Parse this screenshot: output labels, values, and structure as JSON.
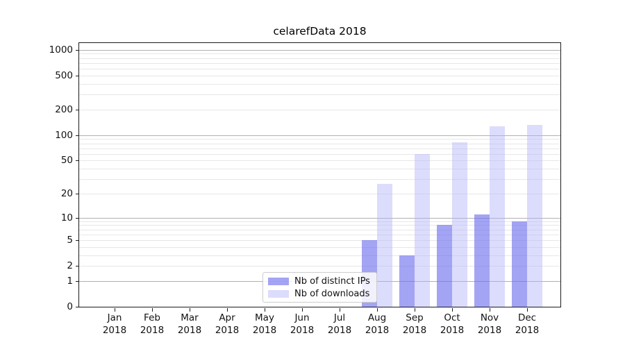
{
  "chart_data": {
    "type": "bar",
    "title": "celarefData 2018",
    "categories": [
      "Jan 2018",
      "Feb 2018",
      "Mar 2018",
      "Apr 2018",
      "May 2018",
      "Jun 2018",
      "Jul 2018",
      "Aug 2018",
      "Sep 2018",
      "Oct 2018",
      "Nov 2018",
      "Dec 2018"
    ],
    "series": [
      {
        "name": "Nb of distinct IPs",
        "color": "rgba(108,108,238,0.62)",
        "values": [
          0,
          0,
          0,
          0,
          0,
          0,
          0,
          5,
          3,
          8,
          11,
          9
        ]
      },
      {
        "name": "Nb of downloads",
        "color": "rgba(178,178,248,0.45)",
        "values": [
          0,
          0,
          0,
          0,
          0,
          0,
          0,
          26,
          60,
          82,
          127,
          133
        ]
      }
    ],
    "xlabel": "",
    "ylabel": "",
    "yticks": [
      0,
      1,
      2,
      5,
      10,
      20,
      50,
      100,
      200,
      500,
      1000
    ],
    "yscale": "log10(1+v)",
    "ylim": [
      0,
      1200
    ],
    "grid": {
      "major_gridline_values": [
        1,
        10,
        100,
        1000
      ],
      "minor_multipliers_per_decade": [
        2,
        3,
        4,
        5,
        6,
        7,
        8,
        9
      ],
      "major_color": "#b0b0b0",
      "minor_color": "#e7e7e7"
    },
    "legend_position": "lower center-left",
    "background_color": "#ffffff",
    "spine_color": "#1a1a1a"
  }
}
